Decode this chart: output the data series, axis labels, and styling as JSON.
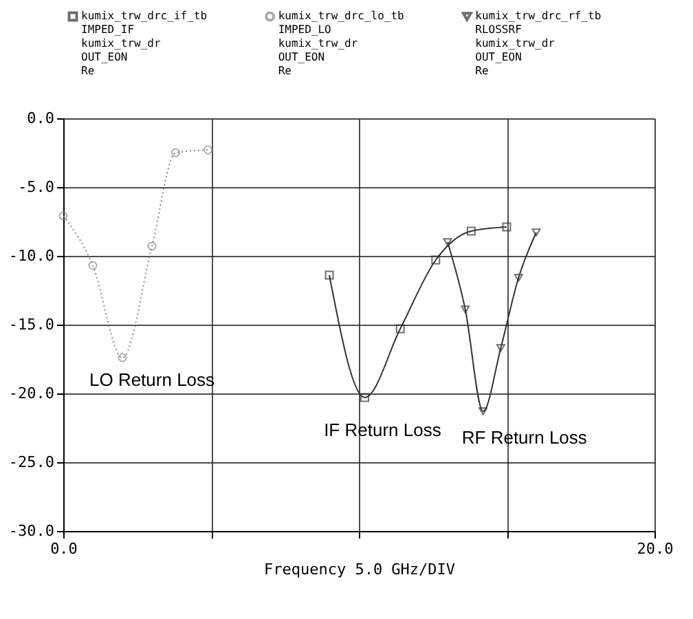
{
  "chart_data": {
    "type": "line",
    "xlabel": "Frequency 5.0 GHz/DIV",
    "xlim": [
      0,
      20
    ],
    "ylim": [
      -30,
      0
    ],
    "xticks": [
      {
        "value": 0,
        "label": "0.0"
      },
      {
        "value": 5,
        "label": null
      },
      {
        "value": 10,
        "label": null
      },
      {
        "value": 15,
        "label": null
      },
      {
        "value": 20,
        "label": "20.0"
      }
    ],
    "yticks": [
      {
        "value": 0,
        "label": "0.0"
      },
      {
        "value": -5,
        "label": "-5.0"
      },
      {
        "value": -10,
        "label": "-10.0"
      },
      {
        "value": -15,
        "label": "-15.0"
      },
      {
        "value": -20,
        "label": "-20.0"
      },
      {
        "value": -25,
        "label": "-25.0"
      },
      {
        "value": -30,
        "label": "-30.0"
      }
    ],
    "grid": true,
    "legend": "top",
    "series": [
      {
        "name": "kumix_trw_drc_if_tb\nIMPED_IF\nkumix_trw_dr\nOUT_EON\nRe",
        "color": "#333333",
        "marker": "square",
        "line_style": "solid",
        "x": [
          9.0,
          10.2,
          11.4,
          12.6,
          13.8,
          15.0
        ],
        "values": [
          -11.4,
          -20.3,
          -15.3,
          -10.3,
          -8.2,
          -7.9
        ]
      },
      {
        "name": "kumix_trw_drc_lo_tb\nIMPED_LO\nkumix_trw_dr\nOUT_EON\nRe",
        "color": "#888888",
        "marker": "circle",
        "line_style": "dotted",
        "x": [
          0.0,
          1.0,
          2.0,
          3.0,
          3.8,
          4.9
        ],
        "values": [
          -7.1,
          -10.7,
          -17.4,
          -9.3,
          -2.5,
          -2.3
        ]
      },
      {
        "name": "kumix_trw_drc_rf_tb\nRLOSSRF\nkumix_trw_dr\nOUT_EON\nRe",
        "color": "#333333",
        "marker": "triangle",
        "line_style": "solid",
        "x": [
          13.0,
          13.6,
          14.2,
          14.8,
          15.4,
          16.0
        ],
        "values": [
          -9.0,
          -13.9,
          -21.3,
          -16.7,
          -11.6,
          -8.3
        ]
      }
    ],
    "annotations": [
      "LO Return Loss",
      "IF Return Loss",
      "RF Return Loss"
    ]
  }
}
